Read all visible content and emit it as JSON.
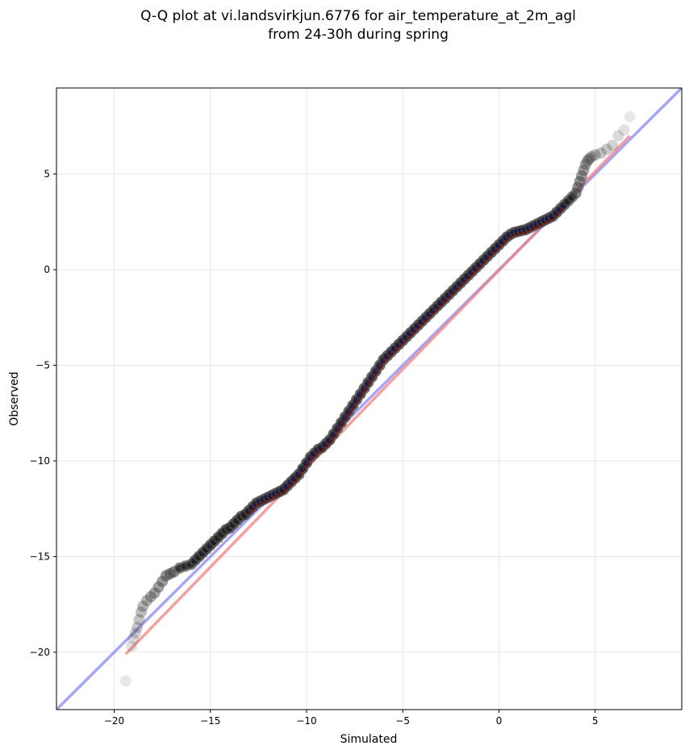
{
  "chart_data": {
    "type": "scatter",
    "title": "Q-Q plot at vi.landsvirkjun.6776 for air_temperature_at_2m_agl",
    "subtitle": "from 24-30h during spring",
    "xlabel": "Simulated",
    "ylabel": "Observed",
    "xlim": [
      -23,
      9.5
    ],
    "ylim": [
      -23,
      9.5
    ],
    "xticks": [
      -20,
      -15,
      -10,
      -5,
      0,
      5
    ],
    "yticks": [
      -20,
      -15,
      -10,
      -5,
      0,
      5
    ],
    "xtick_labels": [
      "−20",
      "−15",
      "−10",
      "−5",
      "0",
      "5"
    ],
    "ytick_labels": [
      "−20",
      "−15",
      "−10",
      "−5",
      "0",
      "5"
    ],
    "grid": true,
    "colors": {
      "points": "#444444",
      "identity_line": "#8080ee",
      "fit_line": "#f08080",
      "fit_line_dark": "#a00000",
      "identity_line_dark": "#1010a0",
      "fit_curve": "#a080c0"
    },
    "series": [
      {
        "kind": "scatter",
        "x": [
          -19.4,
          -19.1,
          -19.0,
          -18.9,
          -18.8,
          -18.7,
          -18.6,
          -18.5,
          -18.3,
          -18.1,
          -17.9,
          -17.7,
          -17.5,
          -17.3,
          -17.1,
          -16.9,
          -16.6,
          -16.3,
          -16.0,
          -15.8,
          -15.6,
          -15.4,
          -15.2,
          -15.0,
          -14.8,
          -14.6,
          -14.4,
          -14.2,
          -14.0,
          -13.8,
          -13.6,
          -13.4,
          -13.2,
          -13.0,
          -12.8,
          -12.6,
          -12.4,
          -12.2,
          -12.0,
          -11.8,
          -11.6,
          -11.4,
          -11.2,
          -11.0,
          -10.8,
          -10.6,
          -10.4,
          -10.2,
          -10.0,
          -9.8,
          -9.6,
          -9.4,
          -9.2,
          -9.0,
          -8.8,
          -8.6,
          -8.4,
          -8.2,
          -8.0,
          -7.8,
          -7.6,
          -7.4,
          -7.2,
          -7.0,
          -6.8,
          -6.6,
          -6.4,
          -6.2,
          -6.0,
          -5.8,
          -5.6,
          -5.4,
          -5.2,
          -5.0,
          -4.8,
          -4.6,
          -4.4,
          -4.2,
          -4.0,
          -3.8,
          -3.6,
          -3.4,
          -3.2,
          -3.0,
          -2.8,
          -2.6,
          -2.4,
          -2.2,
          -2.0,
          -1.8,
          -1.6,
          -1.4,
          -1.2,
          -1.0,
          -0.8,
          -0.6,
          -0.4,
          -0.2,
          0.0,
          0.2,
          0.4,
          0.6,
          0.8,
          1.0,
          1.2,
          1.4,
          1.6,
          1.8,
          2.0,
          2.2,
          2.4,
          2.6,
          2.8,
          3.0,
          3.2,
          3.4,
          3.6,
          3.8,
          4.0,
          4.1,
          4.2,
          4.3,
          4.4,
          4.5,
          4.6,
          4.7,
          4.8,
          5.0,
          5.3,
          5.6,
          5.9,
          6.2,
          6.5,
          6.8
        ],
        "y": [
          -21.5,
          -19.7,
          -19.3,
          -19.0,
          -18.7,
          -18.3,
          -17.9,
          -17.6,
          -17.3,
          -17.1,
          -16.9,
          -16.6,
          -16.3,
          -16.0,
          -15.9,
          -15.8,
          -15.6,
          -15.5,
          -15.4,
          -15.2,
          -15.0,
          -14.8,
          -14.6,
          -14.4,
          -14.2,
          -14.0,
          -13.8,
          -13.6,
          -13.5,
          -13.3,
          -13.1,
          -12.9,
          -12.8,
          -12.6,
          -12.4,
          -12.2,
          -12.1,
          -12.0,
          -11.9,
          -11.8,
          -11.7,
          -11.6,
          -11.5,
          -11.3,
          -11.1,
          -10.9,
          -10.7,
          -10.4,
          -10.1,
          -9.8,
          -9.6,
          -9.4,
          -9.3,
          -9.1,
          -8.9,
          -8.6,
          -8.3,
          -8.0,
          -7.7,
          -7.4,
          -7.1,
          -6.8,
          -6.5,
          -6.2,
          -5.9,
          -5.6,
          -5.3,
          -5.0,
          -4.7,
          -4.5,
          -4.3,
          -4.1,
          -3.9,
          -3.7,
          -3.5,
          -3.3,
          -3.1,
          -2.9,
          -2.7,
          -2.5,
          -2.3,
          -2.1,
          -1.9,
          -1.7,
          -1.5,
          -1.3,
          -1.1,
          -0.9,
          -0.7,
          -0.5,
          -0.3,
          -0.1,
          0.1,
          0.3,
          0.5,
          0.7,
          0.9,
          1.1,
          1.3,
          1.5,
          1.7,
          1.85,
          1.95,
          2.0,
          2.05,
          2.1,
          2.2,
          2.3,
          2.4,
          2.5,
          2.6,
          2.7,
          2.8,
          3.0,
          3.2,
          3.4,
          3.6,
          3.8,
          4.0,
          4.3,
          4.6,
          4.9,
          5.2,
          5.5,
          5.7,
          5.8,
          5.9,
          6.0,
          6.1,
          6.3,
          6.5,
          7.0,
          7.3,
          8.0
        ]
      }
    ],
    "lines": [
      {
        "name": "identity",
        "x": [
          -23,
          9.5
        ],
        "y": [
          -23,
          9.5
        ]
      },
      {
        "name": "fit",
        "x": [
          -19.4,
          6.8
        ],
        "y": [
          -20.1,
          7.0
        ]
      }
    ]
  }
}
